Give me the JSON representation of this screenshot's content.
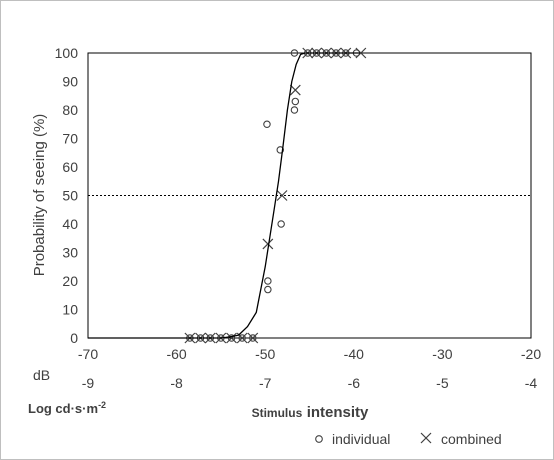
{
  "chart_data": {
    "type": "scatter",
    "title": "",
    "xlabel_prefix": "Stimulus",
    "xlabel_main": "intensity",
    "ylabel": "Probability of seeing (%)",
    "x_axis_db": {
      "unit": "dB",
      "range": [
        -70,
        -20
      ],
      "ticks": [
        "-70",
        "-60",
        "-50",
        "-40",
        "-30",
        "-20"
      ]
    },
    "x_axis_log": {
      "unit": "Log cd·s·m-2",
      "unit_base": "Log cd·s·m",
      "unit_sup": "-2",
      "range": [
        -9,
        -4
      ],
      "ticks": [
        "-9",
        "-8",
        "-7",
        "-6",
        "-5",
        "-4"
      ]
    },
    "y_axis": {
      "range": [
        0,
        100
      ],
      "ticks": [
        "0",
        "10",
        "20",
        "30",
        "40",
        "50",
        "60",
        "70",
        "80",
        "90",
        "100"
      ]
    },
    "reference_line_y": 50,
    "grid": false,
    "series": [
      {
        "name": "individual",
        "marker": "circle",
        "points": [
          [
            -58.5,
            0
          ],
          [
            -57.3,
            0
          ],
          [
            -56.2,
            0
          ],
          [
            -55,
            0
          ],
          [
            -53.8,
            0
          ],
          [
            -52.6,
            0
          ],
          [
            -51.4,
            0
          ],
          [
            -49.8,
            75
          ],
          [
            -49.7,
            20
          ],
          [
            -49.7,
            17
          ],
          [
            -48.3,
            66
          ],
          [
            -48.2,
            40
          ],
          [
            -46.7,
            100
          ],
          [
            -46.6,
            83
          ],
          [
            -46.7,
            80
          ],
          [
            -45.2,
            100
          ],
          [
            -44.2,
            100
          ],
          [
            -43.1,
            100
          ],
          [
            -42,
            100
          ],
          [
            -40.9,
            100
          ],
          [
            -39.7,
            100
          ]
        ]
      },
      {
        "name": "combined",
        "marker": "x",
        "points": [
          [
            -58.5,
            0
          ],
          [
            -57.3,
            0
          ],
          [
            -56.2,
            0
          ],
          [
            -55,
            0
          ],
          [
            -53.8,
            0
          ],
          [
            -52.6,
            0
          ],
          [
            -51.4,
            0
          ],
          [
            -49.7,
            33
          ],
          [
            -48.1,
            50
          ],
          [
            -46.6,
            87
          ],
          [
            -45.2,
            100
          ],
          [
            -44.2,
            100
          ],
          [
            -43.1,
            100
          ],
          [
            -42,
            100
          ],
          [
            -40.9,
            100
          ],
          [
            -39.2,
            100
          ]
        ]
      },
      {
        "name": "fit",
        "marker": "line",
        "points": [
          [
            -70,
            0
          ],
          [
            -60,
            0
          ],
          [
            -55,
            0
          ],
          [
            -54,
            0.4
          ],
          [
            -53,
            1
          ],
          [
            -52,
            4
          ],
          [
            -51,
            9
          ],
          [
            -50,
            25
          ],
          [
            -49,
            45
          ],
          [
            -48.5,
            55
          ],
          [
            -48,
            67
          ],
          [
            -47.5,
            80
          ],
          [
            -47,
            90
          ],
          [
            -46.5,
            96
          ],
          [
            -46,
            99.5
          ],
          [
            -45.5,
            100
          ],
          [
            -44,
            100
          ],
          [
            -39.3,
            100
          ]
        ]
      }
    ],
    "legend": {
      "placement": "bottom-right",
      "items": [
        {
          "label": "individual",
          "marker": "circle"
        },
        {
          "label": "combined",
          "marker": "x"
        }
      ]
    }
  },
  "colors": {
    "axis": "#000000",
    "marker": "#404040",
    "text": "#404040",
    "border": "#bfbfbf"
  }
}
